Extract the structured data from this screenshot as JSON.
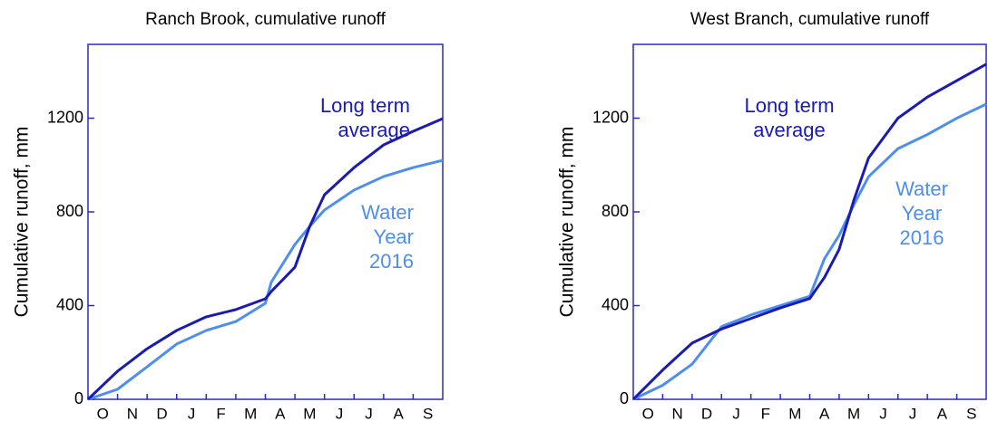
{
  "chart_data": [
    {
      "type": "line",
      "title": "Ranch Brook, cumulative runoff",
      "ylabel": "Cumulative runoff, mm",
      "x": [
        0,
        1,
        2,
        3,
        4,
        5,
        6,
        6.2,
        7,
        7.5,
        8,
        9,
        10,
        11,
        12
      ],
      "xlim": [
        0,
        12
      ],
      "xticks": [
        {
          "value": 0.5,
          "label": "O"
        },
        {
          "value": 1.5,
          "label": "N"
        },
        {
          "value": 2.5,
          "label": "D"
        },
        {
          "value": 3.5,
          "label": "J"
        },
        {
          "value": 4.5,
          "label": "F"
        },
        {
          "value": 5.5,
          "label": "M"
        },
        {
          "value": 6.5,
          "label": "A"
        },
        {
          "value": 7.5,
          "label": "M"
        },
        {
          "value": 8.5,
          "label": "J"
        },
        {
          "value": 9.5,
          "label": "J"
        },
        {
          "value": 10.5,
          "label": "A"
        },
        {
          "value": 11.5,
          "label": "S"
        }
      ],
      "ylim": [
        0,
        1515
      ],
      "yticks": [
        0,
        400,
        800,
        1200
      ],
      "series": [
        {
          "name": "Long term average",
          "color": "#1a1ab4",
          "values": [
            0,
            120,
            216,
            294,
            352,
            383,
            429,
            460,
            564,
            738,
            873,
            989,
            1086,
            1144,
            1198
          ]
        },
        {
          "name": "Water Year 2016",
          "color": "#4d8ff0",
          "values": [
            0,
            43,
            139,
            236,
            294,
            332,
            410,
            500,
            661,
            738,
            808,
            893,
            951,
            989,
            1020
          ]
        }
      ],
      "annotations": [
        {
          "lines": [
            "Long term",
            "average"
          ],
          "color": "#1a1ab4"
        },
        {
          "lines": [
            "Water",
            "Year",
            "2016"
          ],
          "color": "#4d8ff0"
        }
      ]
    },
    {
      "type": "line",
      "title": "West Branch, cumulative runoff",
      "ylabel": "Cumulative runoff, mm",
      "x": [
        0,
        1,
        2,
        3,
        4,
        5,
        6,
        6.5,
        7,
        7.5,
        8,
        9,
        10,
        11,
        12
      ],
      "xlim": [
        0,
        12
      ],
      "xticks": [
        {
          "value": 0.5,
          "label": "O"
        },
        {
          "value": 1.5,
          "label": "N"
        },
        {
          "value": 2.5,
          "label": "D"
        },
        {
          "value": 3.5,
          "label": "J"
        },
        {
          "value": 4.5,
          "label": "F"
        },
        {
          "value": 5.5,
          "label": "M"
        },
        {
          "value": 6.5,
          "label": "A"
        },
        {
          "value": 7.5,
          "label": "M"
        },
        {
          "value": 8.5,
          "label": "J"
        },
        {
          "value": 9.5,
          "label": "J"
        },
        {
          "value": 10.5,
          "label": "A"
        },
        {
          "value": 11.5,
          "label": "S"
        }
      ],
      "ylim": [
        0,
        1515
      ],
      "yticks": [
        0,
        400,
        800,
        1200
      ],
      "series": [
        {
          "name": "Long term average",
          "color": "#1a1ab4",
          "values": [
            0,
            125,
            240,
            300,
            345,
            390,
            430,
            520,
            640,
            850,
            1030,
            1200,
            1290,
            1360,
            1430
          ]
        },
        {
          "name": "Water Year 2016",
          "color": "#4d8ff0",
          "values": [
            0,
            60,
            150,
            310,
            360,
            400,
            440,
            600,
            700,
            830,
            950,
            1070,
            1130,
            1200,
            1260
          ]
        }
      ],
      "annotations": [
        {
          "lines": [
            "Long term",
            "average"
          ],
          "color": "#1a1ab4"
        },
        {
          "lines": [
            "Water",
            "Year",
            "2016"
          ],
          "color": "#4d8ff0"
        }
      ]
    }
  ]
}
